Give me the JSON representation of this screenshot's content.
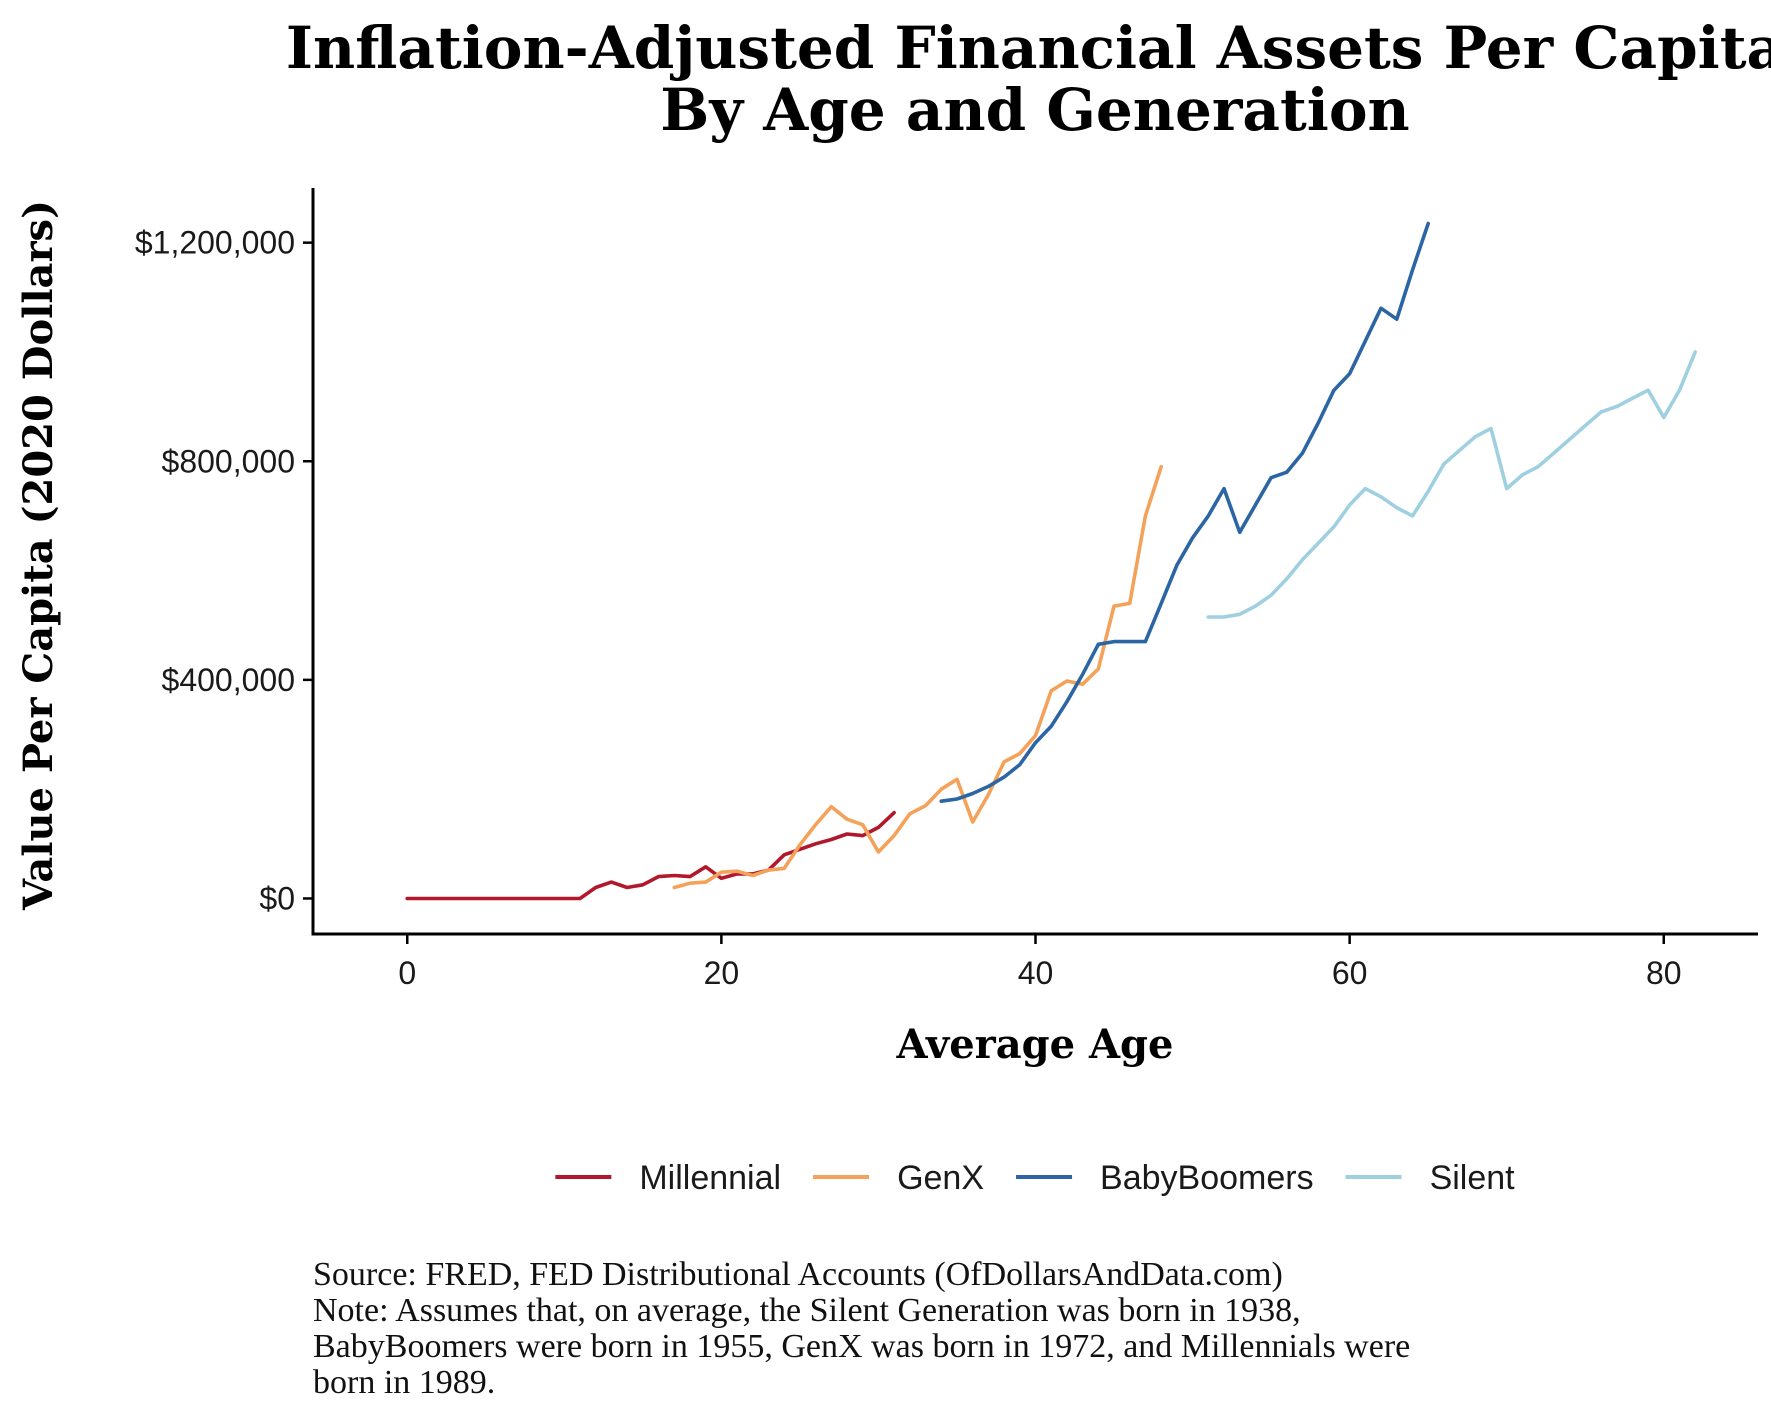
{
  "chart_data": {
    "type": "line",
    "title": "Inflation-Adjusted Financial Assets Per Capita",
    "subtitle": "By Age and Generation",
    "xlabel": "Average Age",
    "ylabel": "Value Per Capita (2020 Dollars)",
    "xlim": [
      -6,
      86
    ],
    "ylim": [
      -65000,
      1300000
    ],
    "x_ticks": [
      0,
      20,
      40,
      60,
      80
    ],
    "x_tick_labels": [
      "0",
      "20",
      "40",
      "60",
      "80"
    ],
    "y_ticks": [
      0,
      400000,
      800000,
      1200000
    ],
    "y_tick_labels": [
      "$0",
      "$400,000",
      "$800,000",
      "$1,200,000"
    ],
    "grid": false,
    "legend_position": "bottom",
    "series": [
      {
        "name": "Millennial",
        "color": "#b2182b",
        "x": [
          0,
          1,
          2,
          3,
          4,
          5,
          6,
          7,
          8,
          9,
          10,
          11,
          12,
          13,
          14,
          15,
          16,
          17,
          18,
          19,
          20,
          21,
          22,
          23,
          24,
          25,
          26,
          27,
          28,
          29,
          30,
          31
        ],
        "y": [
          0,
          0,
          0,
          0,
          0,
          0,
          0,
          0,
          0,
          0,
          0,
          0,
          20000,
          30000,
          20000,
          25000,
          40000,
          42000,
          40000,
          58000,
          37000,
          45000,
          45000,
          52000,
          80000,
          90000,
          100000,
          108000,
          118000,
          115000,
          130000,
          157000
        ]
      },
      {
        "name": "GenX",
        "color": "#f4a259",
        "x": [
          17,
          18,
          19,
          20,
          21,
          22,
          23,
          24,
          25,
          26,
          27,
          28,
          29,
          30,
          31,
          32,
          33,
          34,
          35,
          36,
          37,
          38,
          39,
          40,
          41,
          42,
          43,
          44,
          45,
          46,
          47,
          48
        ],
        "y": [
          20000,
          28000,
          30000,
          48000,
          50000,
          42000,
          52000,
          55000,
          98000,
          135000,
          168000,
          145000,
          135000,
          85000,
          115000,
          155000,
          170000,
          200000,
          218000,
          140000,
          190000,
          250000,
          265000,
          298000,
          380000,
          398000,
          392000,
          420000,
          535000,
          540000,
          700000,
          790000
        ]
      },
      {
        "name": "BabyBoomers",
        "color": "#2c65a3",
        "x": [
          34,
          35,
          36,
          37,
          38,
          39,
          40,
          41,
          42,
          43,
          44,
          45,
          46,
          47,
          48,
          49,
          50,
          51,
          52,
          53,
          54,
          55,
          56,
          57,
          58,
          59,
          60,
          61,
          62,
          63,
          64,
          65
        ],
        "y": [
          178000,
          182000,
          192000,
          205000,
          222000,
          245000,
          285000,
          315000,
          360000,
          410000,
          465000,
          470000,
          470000,
          470000,
          540000,
          610000,
          660000,
          700000,
          750000,
          670000,
          720000,
          770000,
          780000,
          815000,
          870000,
          930000,
          960000,
          1020000,
          1080000,
          1060000,
          1150000,
          1235000
        ]
      },
      {
        "name": "Silent",
        "color": "#9fd0e0",
        "x": [
          51,
          52,
          53,
          54,
          55,
          56,
          57,
          58,
          59,
          60,
          61,
          62,
          63,
          64,
          65,
          66,
          67,
          68,
          69,
          70,
          71,
          72,
          73,
          74,
          75,
          76,
          77,
          78,
          79,
          80,
          81,
          82
        ],
        "y": [
          515000,
          515000,
          520000,
          535000,
          555000,
          585000,
          620000,
          650000,
          680000,
          720000,
          750000,
          735000,
          715000,
          700000,
          745000,
          795000,
          820000,
          845000,
          860000,
          750000,
          775000,
          790000,
          815000,
          840000,
          865000,
          890000,
          900000,
          915000,
          930000,
          880000,
          930000,
          1000000
        ]
      }
    ]
  },
  "footer": {
    "line1": "Source:  FRED, FED Distributional Accounts (OfDollarsAndData.com)",
    "line2": "Note: Assumes that, on average, the Silent Generation was born in 1938,",
    "line3": "BabyBoomers were born in 1955, GenX was born in 1972, and Millennials were",
    "line4": "born in 1989."
  }
}
